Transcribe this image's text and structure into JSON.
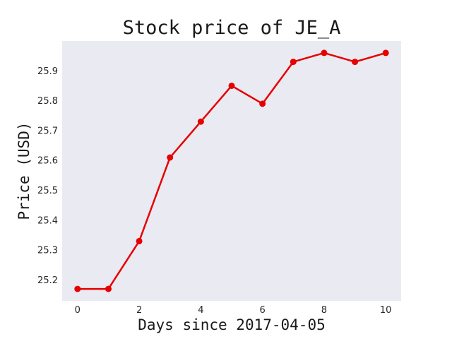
{
  "chart_data": {
    "type": "line",
    "title": "Stock price of JE_A",
    "xlabel": "Days since 2017-04-05",
    "ylabel": "Price (USD)",
    "x": [
      0,
      1,
      2,
      3,
      4,
      5,
      6,
      7,
      8,
      9,
      10
    ],
    "series": [
      {
        "values": [
          25.17,
          25.17,
          25.33,
          25.61,
          25.73,
          25.85,
          25.79,
          25.93,
          25.96,
          25.93,
          25.96
        ],
        "color": "#e60000"
      }
    ],
    "xlim": [
      -0.5,
      10.5
    ],
    "ylim": [
      25.13,
      26.0
    ],
    "xticks": [
      0,
      2,
      4,
      6,
      8,
      10
    ],
    "yticks": [
      25.2,
      25.3,
      25.4,
      25.5,
      25.6,
      25.7,
      25.8,
      25.9
    ],
    "grid": false,
    "background": "#eaeaf2"
  }
}
